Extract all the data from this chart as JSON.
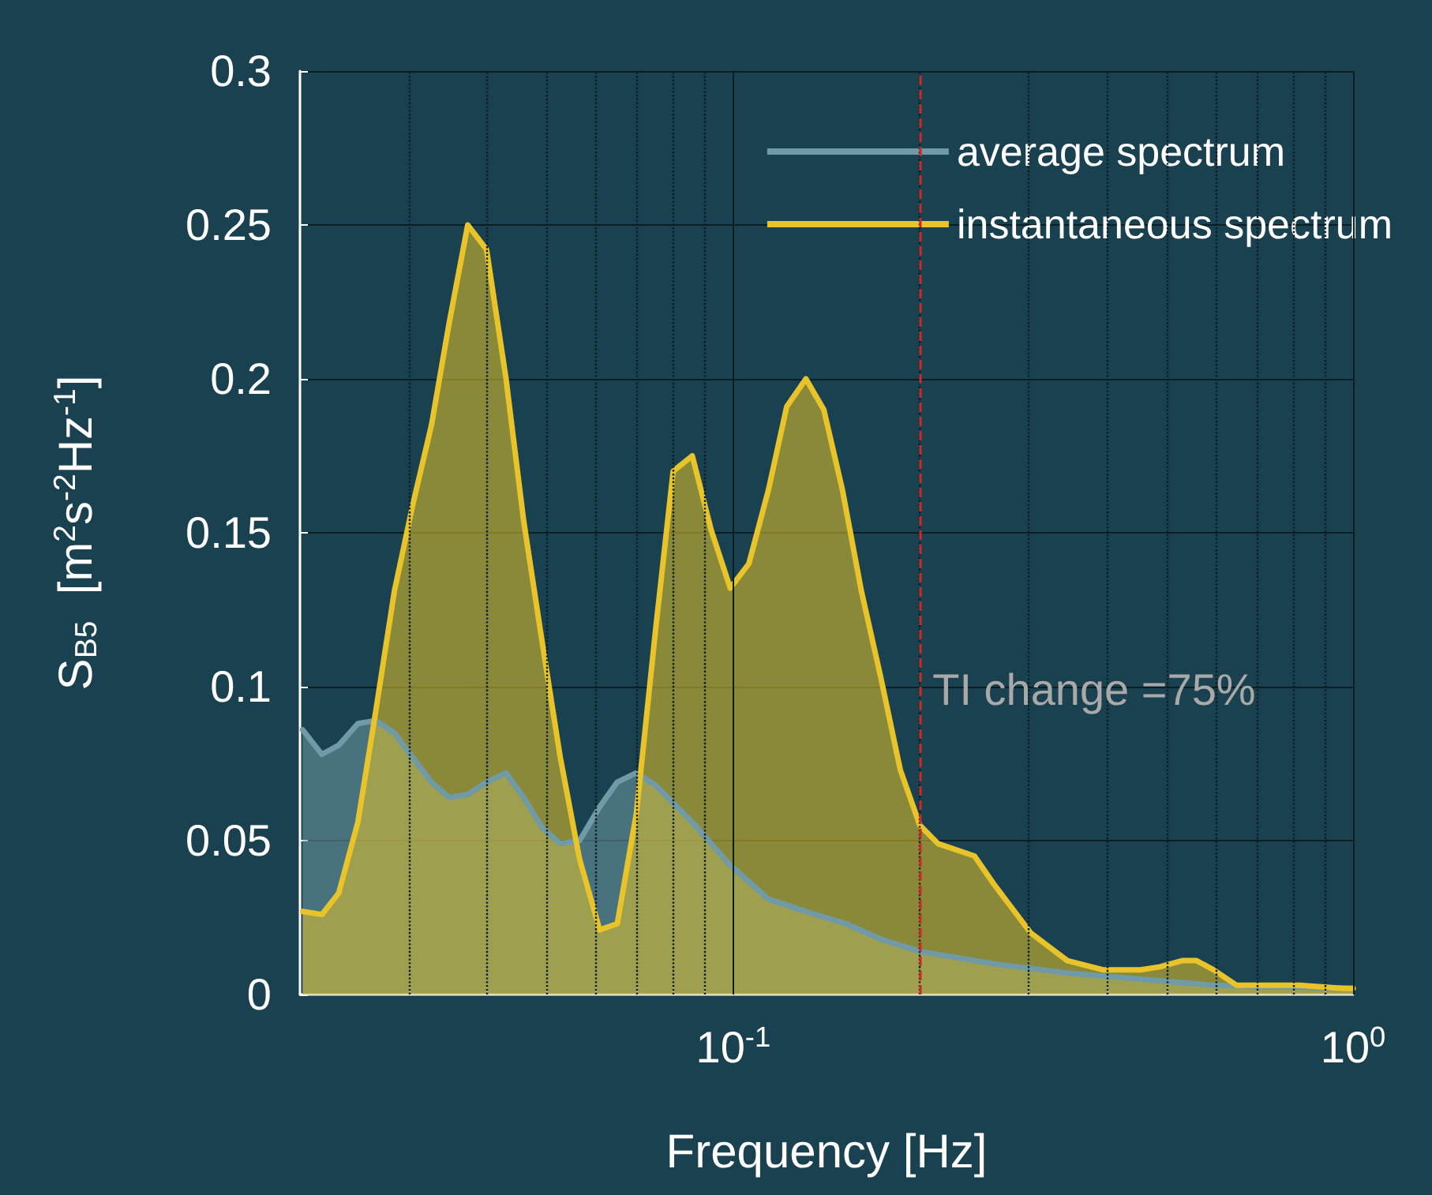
{
  "chart_data": {
    "type": "area",
    "xlabel": "Frequency [Hz]",
    "ylabel": "S$_{B5}$  [m$^{2}$s$^{-2}$Hz$^{-1}$]",
    "log": "x",
    "grid": true,
    "legend": "top right",
    "xlim": [
      0.02,
      1
    ],
    "ylim": [
      0,
      0.3
    ],
    "xticks": [
      {
        "value": 0.03,
        "label": null
      },
      {
        "value": 0.04,
        "label": null
      },
      {
        "value": 0.05,
        "label": null
      },
      {
        "value": 0.06,
        "label": null
      },
      {
        "value": 0.07,
        "label": null
      },
      {
        "value": 0.08,
        "label": null
      },
      {
        "value": 0.09,
        "label": null
      },
      {
        "value": 0.1,
        "label": "10$^{-1}$"
      },
      {
        "value": 0.2,
        "label": null
      },
      {
        "value": 0.3,
        "label": null
      },
      {
        "value": 0.4,
        "label": null
      },
      {
        "value": 0.5,
        "label": null
      },
      {
        "value": 0.6,
        "label": null
      },
      {
        "value": 0.7,
        "label": null
      },
      {
        "value": 0.8,
        "label": null
      },
      {
        "value": 0.9,
        "label": null
      },
      {
        "value": 1,
        "label": "10$^{0}$"
      }
    ],
    "yticks": [
      0,
      0.05,
      0.1,
      0.15,
      0.2,
      0.25,
      0.3
    ],
    "ref_lines": [
      {
        "axis": "x",
        "value": 0.2,
        "color": "#d02828",
        "line_style": "dashed"
      }
    ],
    "annotations": [
      "TI change =75%"
    ],
    "series": [
      {
        "name": "average spectrum",
        "color": "#6f9aa6",
        "x": [
          0.0202,
          0.0217,
          0.0231,
          0.0248,
          0.0265,
          0.0284,
          0.0304,
          0.0326,
          0.0348,
          0.0373,
          0.04,
          0.043,
          0.0459,
          0.0493,
          0.0526,
          0.0565,
          0.0609,
          0.065,
          0.0698,
          0.0749,
          0.0859,
          0.0989,
          0.114,
          0.131,
          0.152,
          0.173,
          0.2,
          0.263,
          0.346,
          0.454,
          0.596,
          1
        ],
        "values": [
          0.086,
          0.078,
          0.081,
          0.088,
          0.089,
          0.085,
          0.077,
          0.069,
          0.064,
          0.065,
          0.069,
          0.072,
          0.064,
          0.054,
          0.049,
          0.05,
          0.061,
          0.069,
          0.072,
          0.068,
          0.056,
          0.042,
          0.031,
          0.027,
          0.023,
          0.018,
          0.014,
          0.01,
          0.007,
          0.005,
          0.003,
          0.002
        ]
      },
      {
        "name": "instantaneous spectrum",
        "color": "#e8c42a",
        "x": [
          0.0202,
          0.0217,
          0.0231,
          0.0248,
          0.0265,
          0.0284,
          0.0304,
          0.0326,
          0.0348,
          0.0373,
          0.04,
          0.043,
          0.0459,
          0.0493,
          0.0526,
          0.0565,
          0.0609,
          0.065,
          0.0698,
          0.0749,
          0.08,
          0.0859,
          0.0921,
          0.0989,
          0.106,
          0.114,
          0.122,
          0.131,
          0.14,
          0.15,
          0.161,
          0.173,
          0.186,
          0.2,
          0.214,
          0.245,
          0.263,
          0.302,
          0.346,
          0.396,
          0.454,
          0.488,
          0.53,
          0.559,
          0.596,
          0.649,
          0.734,
          0.82,
          0.963,
          1
        ],
        "values": [
          0.027,
          0.026,
          0.033,
          0.056,
          0.092,
          0.131,
          0.159,
          0.185,
          0.218,
          0.25,
          0.242,
          0.2,
          0.154,
          0.113,
          0.077,
          0.044,
          0.021,
          0.023,
          0.059,
          0.118,
          0.17,
          0.175,
          0.151,
          0.132,
          0.14,
          0.164,
          0.191,
          0.2,
          0.19,
          0.164,
          0.131,
          0.103,
          0.073,
          0.055,
          0.049,
          0.045,
          0.036,
          0.02,
          0.011,
          0.008,
          0.008,
          0.009,
          0.011,
          0.011,
          0.008,
          0.003,
          0.003,
          0.003,
          0.002,
          0.002
        ]
      }
    ]
  }
}
